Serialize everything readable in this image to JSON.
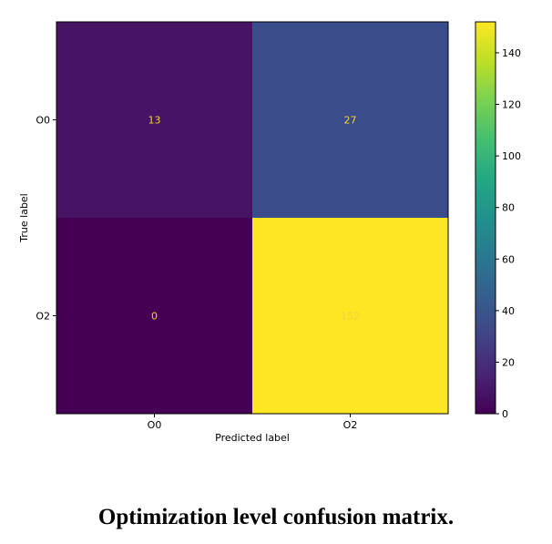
{
  "caption": "Optimization level confusion matrix.",
  "chart_data": {
    "type": "heatmap",
    "row_labels": [
      "O0",
      "O2"
    ],
    "col_labels": [
      "O0",
      "O2"
    ],
    "values": [
      [
        13,
        27
      ],
      [
        0,
        152
      ]
    ],
    "xlabel": "Predicted label",
    "ylabel": "True label",
    "colormap": "viridis",
    "colorbar": {
      "min": 0,
      "max": 152,
      "ticks": [
        0,
        20,
        40,
        60,
        80,
        100,
        120,
        140
      ]
    },
    "cell_colors": [
      [
        "#471365",
        "#3b4c8a"
      ],
      [
        "#440154",
        "#fde725"
      ]
    ],
    "cell_text_color": "#f2d23a"
  }
}
